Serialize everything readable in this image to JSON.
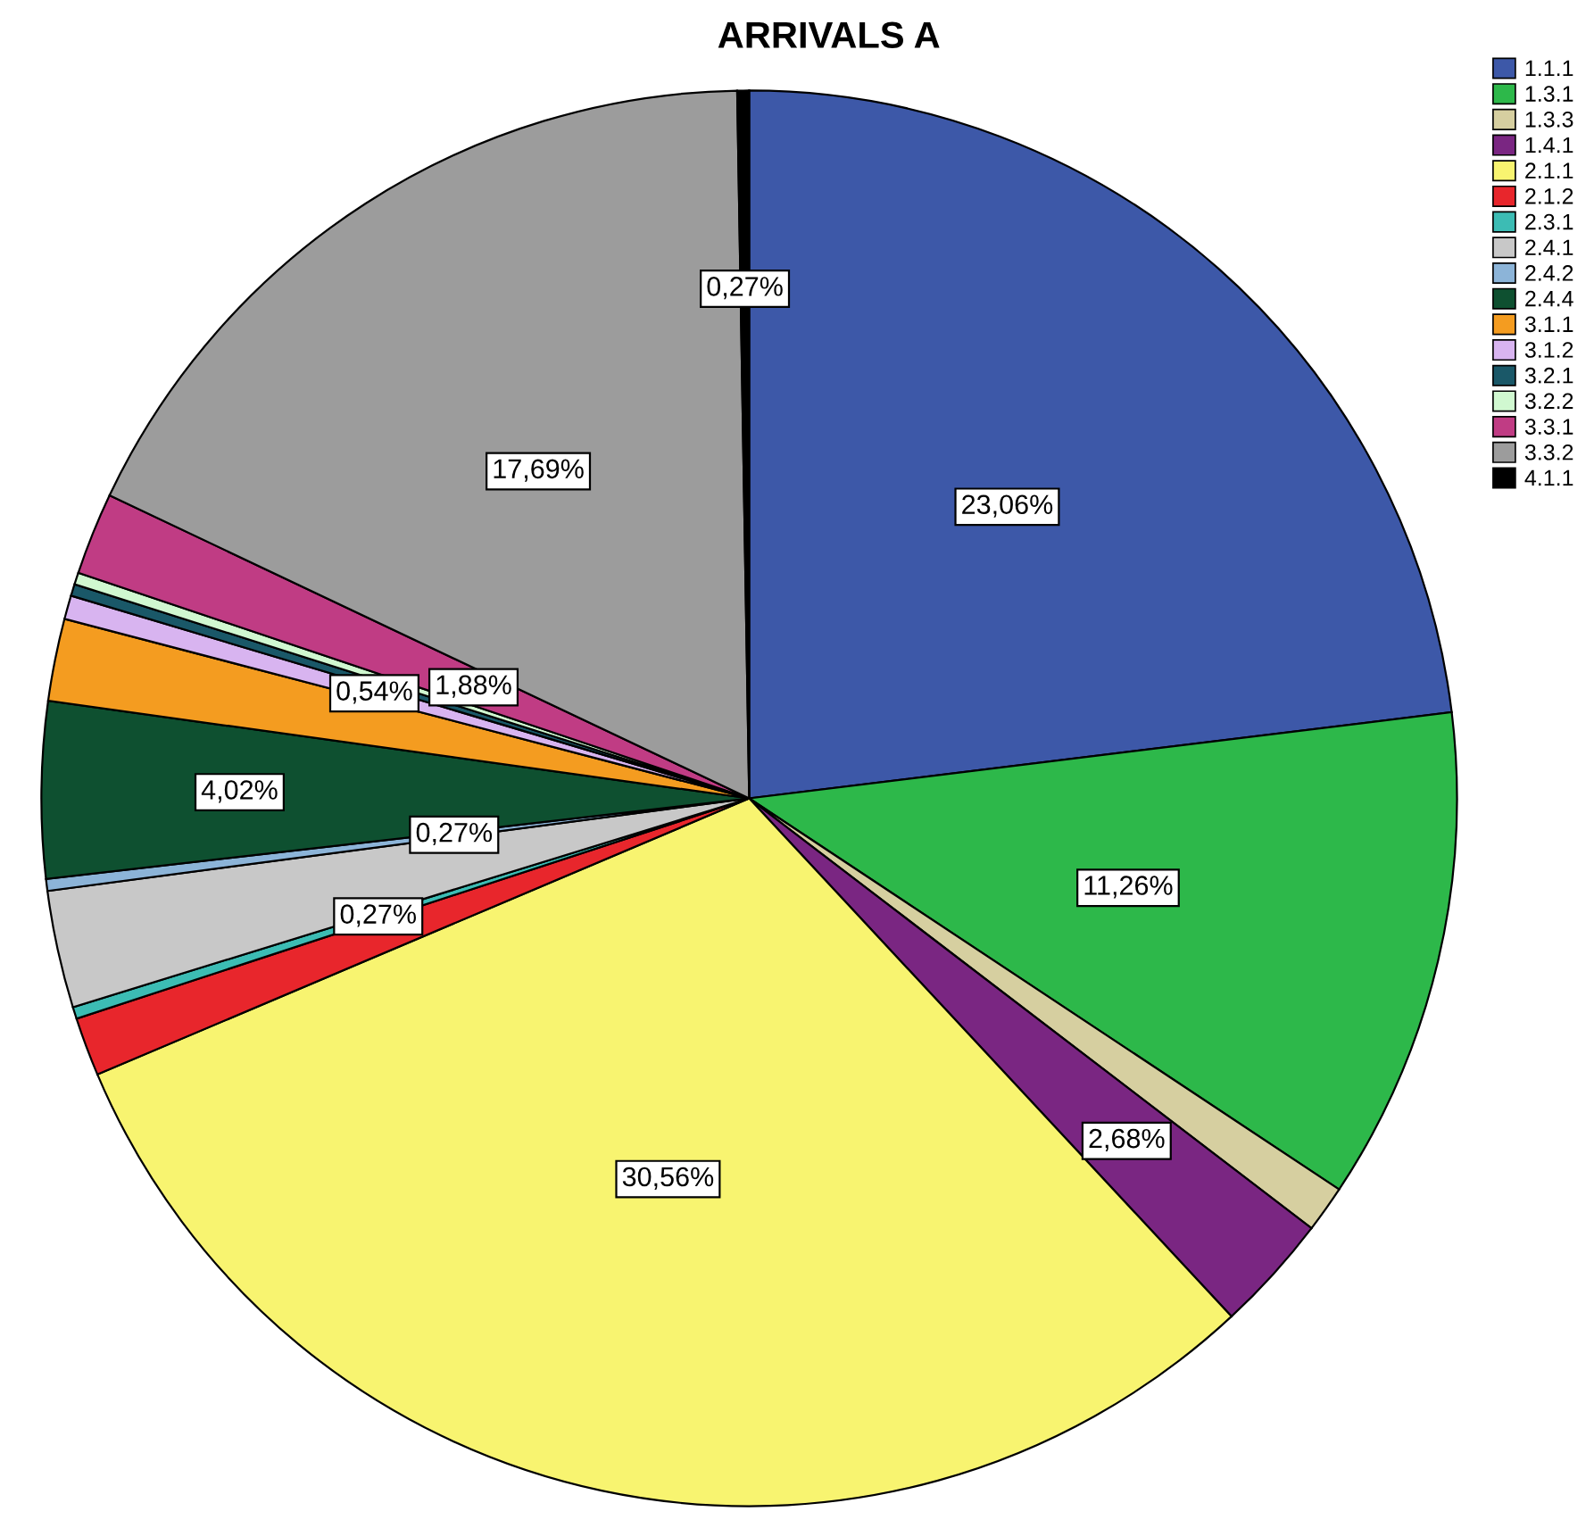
{
  "chart_data": {
    "type": "pie",
    "title": "ARRIVALS A",
    "categories": [
      "1.1.1",
      "1.3.1",
      "1.3.3",
      "1.4.1",
      "2.1.1",
      "2.1.2",
      "2.3.1",
      "2.4.1",
      "2.4.2",
      "2.4.4",
      "3.1.1",
      "3.1.2",
      "3.2.1",
      "3.2.2",
      "3.3.1",
      "3.3.2",
      "4.1.1"
    ],
    "values": [
      23.06,
      11.26,
      1.07,
      2.68,
      30.56,
      1.34,
      0.27,
      2.68,
      0.27,
      4.02,
      1.88,
      0.54,
      0.27,
      0.27,
      1.88,
      17.69,
      0.27
    ],
    "value_labels": [
      "23,06%",
      "11,26%",
      null,
      "2,68%",
      "30,56%",
      null,
      "0,27%",
      null,
      "0,27%",
      "4,02%",
      null,
      "0,54%",
      null,
      null,
      "1,88%",
      "17,69%",
      "0,27%"
    ],
    "colors": [
      "#3d58a8",
      "#2db84a",
      "#d6cfa0",
      "#7a2682",
      "#f8f470",
      "#e8262c",
      "#3cbcb4",
      "#c8c8c8",
      "#8cb4d8",
      "#0e5030",
      "#f49c20",
      "#d8b4f0",
      "#1a5868",
      "#d0f8d0",
      "#c03c84",
      "#9c9c9c",
      "#000000"
    ],
    "legend": "top right"
  }
}
